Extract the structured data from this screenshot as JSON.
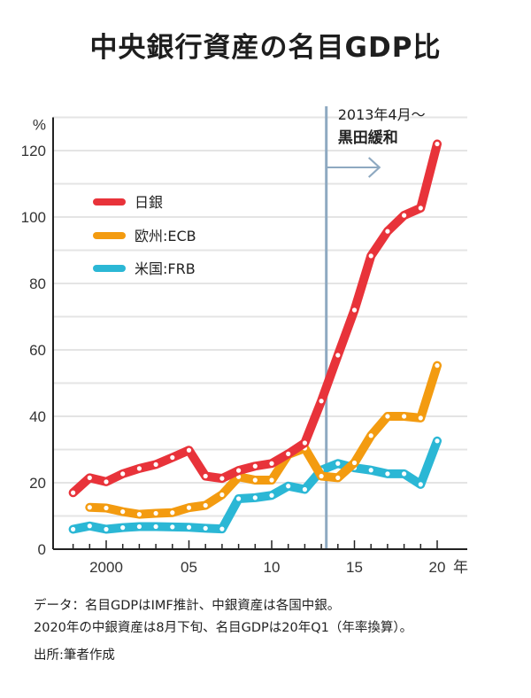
{
  "page": {
    "title": "中央銀行資産の名目GDP比",
    "notes": [
      "データ：名目GDPはIMF推計、中銀資産は各国中銀。",
      "2020年の中銀資産は8月下旬、名目GDPは20年Q1（年率換算）。"
    ],
    "source": "出所:筆者作成"
  },
  "chart_data": {
    "type": "line",
    "title": "中央銀行資産の名目GDP比",
    "ylabel": "%",
    "xlabel": "年",
    "ylim": [
      0,
      130
    ],
    "xlim": [
      1997,
      2021.8
    ],
    "yticks": [
      0,
      20,
      40,
      60,
      80,
      100,
      120
    ],
    "ytick_labels": [
      "0",
      "20",
      "40",
      "60",
      "80",
      "100",
      "120"
    ],
    "xticks": [
      2000,
      2005,
      2010,
      2015,
      2020
    ],
    "xtick_labels": [
      "2000",
      "05",
      "10",
      "15",
      "20"
    ],
    "x_unit_label": "年",
    "grid": true,
    "legend_position": "upper-left",
    "annotation": {
      "x": 2013.3,
      "line1": "2013年4月〜",
      "line2": "黒田緩和",
      "color": "#8ea9c1"
    },
    "series": [
      {
        "name": "日銀",
        "color": "#e8333a",
        "x": [
          1998,
          1999,
          2000,
          2001,
          2002,
          2003,
          2004,
          2005,
          2006,
          2007,
          2008,
          2009,
          2010,
          2011,
          2012,
          2013,
          2014,
          2015,
          2016,
          2017,
          2018,
          2019,
          2020
        ],
        "values": [
          17.0,
          21.5,
          20.3,
          22.7,
          24.3,
          25.5,
          27.6,
          29.8,
          22.0,
          21.3,
          23.7,
          25.0,
          25.8,
          28.7,
          32.0,
          44.6,
          58.4,
          72.0,
          88.3,
          95.7,
          100.5,
          102.7,
          122.0
        ]
      },
      {
        "name": "欧州:ECB",
        "color": "#f39b10",
        "x": [
          1999,
          2000,
          2001,
          2002,
          2003,
          2004,
          2005,
          2006,
          2007,
          2008,
          2009,
          2010,
          2011,
          2012,
          2013,
          2014,
          2015,
          2016,
          2017,
          2018,
          2019,
          2020
        ],
        "values": [
          12.6,
          12.4,
          11.3,
          10.5,
          10.8,
          11.0,
          12.5,
          13.2,
          16.4,
          21.8,
          20.8,
          20.8,
          28.5,
          30.4,
          22.0,
          21.5,
          26.0,
          34.2,
          40.0,
          40.0,
          39.5,
          55.3
        ]
      },
      {
        "name": "米国:FRB",
        "color": "#2bb7d5",
        "x": [
          1998,
          1999,
          2000,
          2001,
          2002,
          2003,
          2004,
          2005,
          2006,
          2007,
          2008,
          2009,
          2010,
          2011,
          2012,
          2013,
          2014,
          2015,
          2016,
          2017,
          2018,
          2019,
          2020
        ],
        "values": [
          6.0,
          7.0,
          6.0,
          6.5,
          6.8,
          6.8,
          6.7,
          6.6,
          6.3,
          6.1,
          15.2,
          15.5,
          16.2,
          19.0,
          18.0,
          23.8,
          25.8,
          24.5,
          23.8,
          22.7,
          22.7,
          19.5,
          32.6
        ]
      }
    ]
  }
}
